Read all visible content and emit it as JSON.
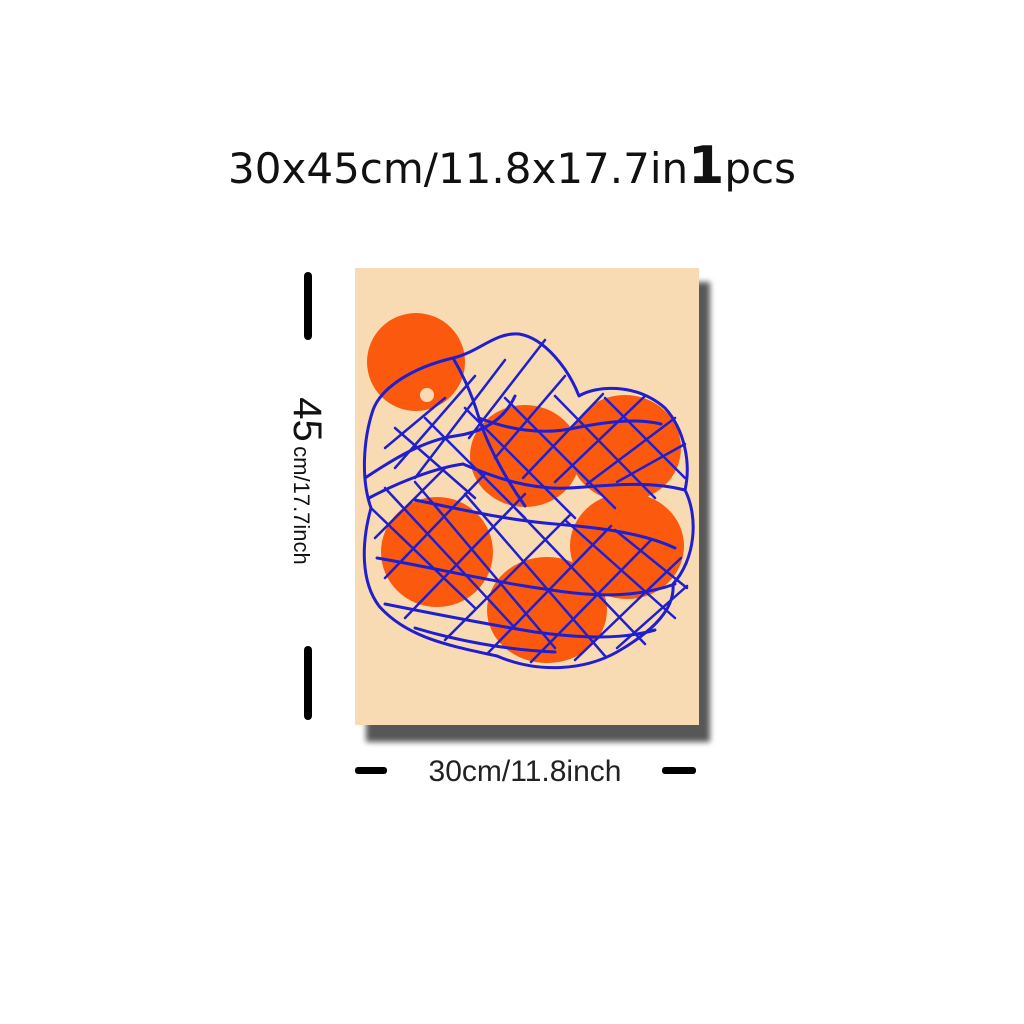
{
  "headline": {
    "size_text": "30x45cm/11.8x17.7in",
    "quantity_number": "1",
    "quantity_unit": "pcs"
  },
  "dimensions": {
    "height_value": "45",
    "height_rest": "cm/17.7inch",
    "width_label": "30cm/11.8inch"
  },
  "artwork": {
    "subject": "oranges in a string net bag",
    "background_color": "#f9dbb3",
    "fruit_color": "#fb5a0e",
    "net_color": "#1f1fd0"
  }
}
